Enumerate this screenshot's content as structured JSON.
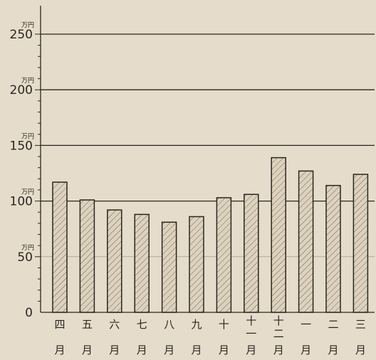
{
  "chart_data": {
    "type": "bar",
    "title": "",
    "xlabel": "",
    "ylabel": "",
    "unit": "万円",
    "ylim": [
      0,
      250
    ],
    "yticks": [
      "0",
      "50",
      "100",
      "150",
      "200",
      "250"
    ],
    "major_grid": [
      100,
      150,
      200,
      250
    ],
    "categories": [
      [
        "四",
        "月"
      ],
      [
        "五",
        "月"
      ],
      [
        "六",
        "月"
      ],
      [
        "七",
        "月"
      ],
      [
        "八",
        "月"
      ],
      [
        "九",
        "月"
      ],
      [
        "十",
        "月"
      ],
      [
        "十",
        "一",
        "月"
      ],
      [
        "十",
        "二",
        "月"
      ],
      [
        "一",
        "月"
      ],
      [
        "二",
        "月"
      ],
      [
        "三",
        "月"
      ]
    ],
    "values": [
      117,
      101,
      92,
      88,
      81,
      86,
      103,
      106,
      139,
      127,
      114,
      124
    ],
    "colors": {
      "paper": "#e6dccb",
      "ink": "#2a2620",
      "bar_fill": "#ddd2be",
      "hatch": "#6d6454"
    }
  }
}
